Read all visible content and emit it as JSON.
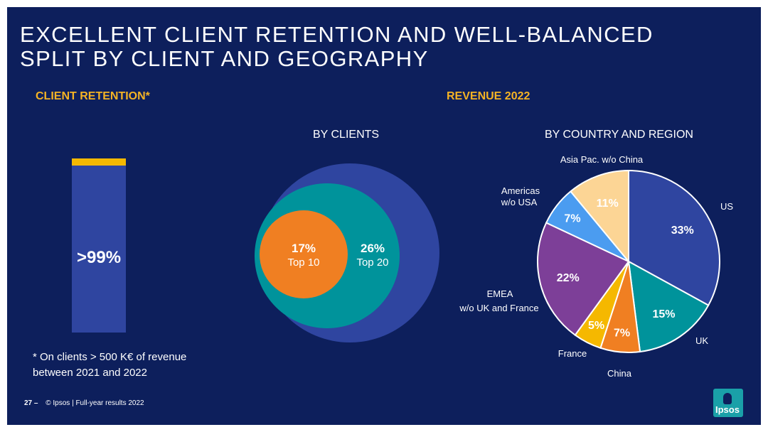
{
  "title_line1": "EXCELLENT CLIENT RETENTION AND WELL-BALANCED",
  "title_line2": "SPLIT BY CLIENT AND GEOGRAPHY",
  "client_retention_label": "CLIENT RETENTION*",
  "revenue_label": "REVENUE 2022",
  "by_clients_label": "BY CLIENTS",
  "by_country_label": "BY COUNTRY AND REGION",
  "retention_value": ">99%",
  "footnote_line1": "* On clients > 500 K€ of revenue",
  "footnote_line2": "between 2021 and 2022",
  "footer_page": "27 –",
  "footer_text": "© Ipsos | Full-year results 2022",
  "logo_text": "Ipsos",
  "colors": {
    "background": "#0d1f5c",
    "accent": "#f5b324",
    "bar": "#2f45a0"
  },
  "chart_data": [
    {
      "type": "bar",
      "categories": [
        "Client retention"
      ],
      "values": [
        99
      ],
      "value_label": ">99%",
      "ylim": [
        0,
        100
      ]
    },
    {
      "type": "pie",
      "title": "BY CLIENTS",
      "series": [
        {
          "name": "Top 10",
          "value": 17,
          "label": "17%",
          "color": "#f07f22"
        },
        {
          "name": "Top 20",
          "value": 26,
          "label": "26%",
          "color": "#00939b"
        },
        {
          "name": "",
          "value": 100,
          "label": "",
          "color": "#2f45a0"
        }
      ]
    },
    {
      "type": "pie",
      "title": "BY COUNTRY AND REGION",
      "slices": [
        {
          "name": "US",
          "value": 33,
          "label": "33%",
          "color": "#2f45a0"
        },
        {
          "name": "UK",
          "value": 15,
          "label": "15%",
          "color": "#00939b"
        },
        {
          "name": "China",
          "value": 7,
          "label": "7%",
          "color": "#f07f22"
        },
        {
          "name": "France",
          "value": 5,
          "label": "5%",
          "color": "#f5b800"
        },
        {
          "name": "EMEA w/o UK and France",
          "value": 22,
          "label": "22%",
          "color": "#7d3f98"
        },
        {
          "name": "Americas w/o USA",
          "value": 7,
          "label": "7%",
          "color": "#4b9cf0"
        },
        {
          "name": "Asia Pac. w/o China",
          "value": 11,
          "label": "11%",
          "color": "#fcd595"
        }
      ],
      "category_labels": {
        "US": "US",
        "UK": "UK",
        "China": "China",
        "France": "France",
        "EMEA_1": "EMEA",
        "EMEA_2": "w/o UK and France",
        "Americas_1": "Americas",
        "Americas_2": "w/o USA",
        "AsiaPac": "Asia Pac.  w/o China"
      }
    }
  ]
}
